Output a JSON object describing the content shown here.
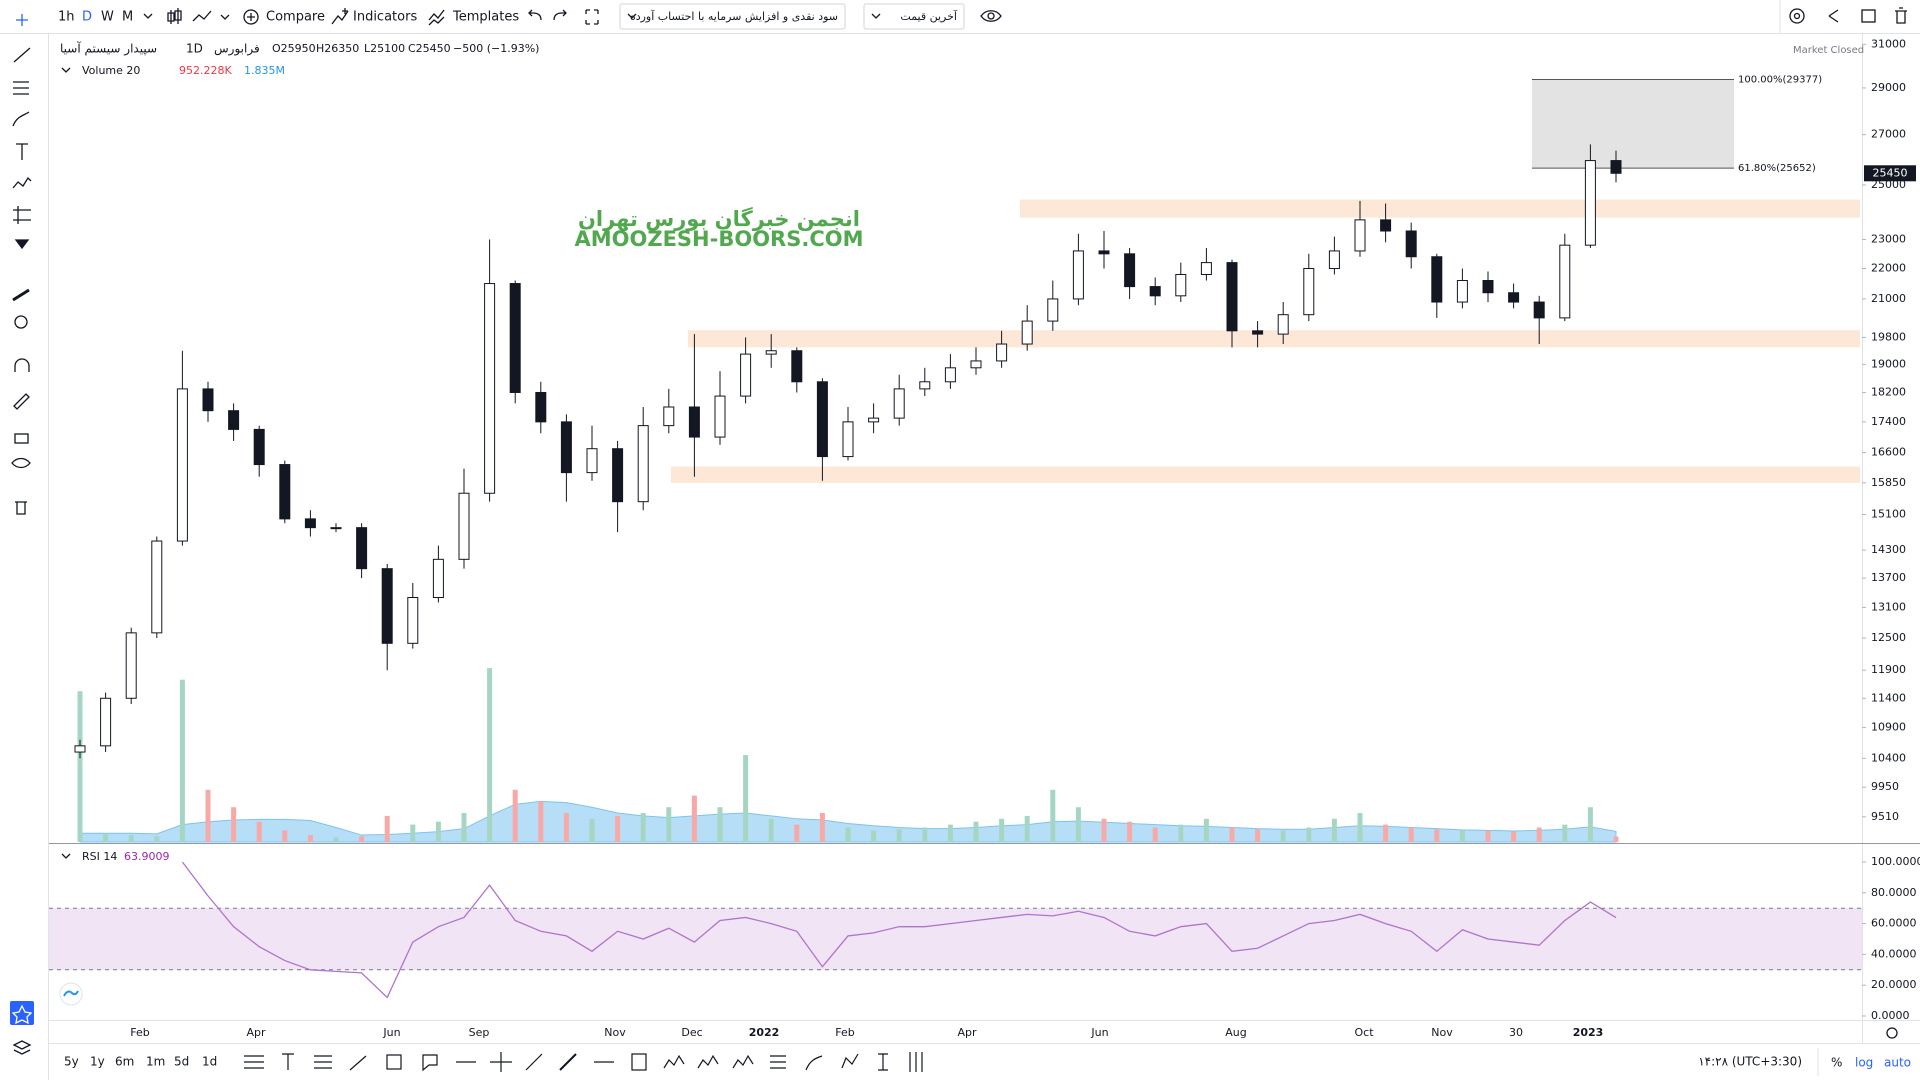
{
  "toolbar": {
    "intervals": [
      "1h",
      "D",
      "W",
      "M"
    ],
    "compare": "Compare",
    "indicators": "Indicators",
    "templates": "Templates",
    "dividend_mode": "سود نقدی و افزایش سرمایه با احتساب آورده",
    "price_type": "آخرین قیمت"
  },
  "legend": {
    "symbol": "سپیدار سیستم آسیا",
    "interval": "1D",
    "exchange": "فرابورس",
    "ohlc": [
      "O25950",
      "H26350",
      "L25100",
      "C25450",
      "−500 (−1.93%)"
    ],
    "status": "Market Closed"
  },
  "watermark": {
    "line1": "انجمن خبرگان بورس تهران",
    "line2": "AMOOZESH-BOORS.COM"
  },
  "bottom_bar": {
    "ranges": [
      "5y",
      "1y",
      "6m",
      "1m",
      "5d",
      "1d"
    ],
    "clock": "۱۴:۲۸ (UTC+3:30)",
    "percent": "%",
    "log": "log",
    "auto": "auto"
  },
  "chart_data": {
    "type": "candlestick",
    "log_scale": true,
    "color": "#131722",
    "open": [
      10500,
      10600,
      11400,
      12600,
      14500,
      18300,
      17700,
      17200,
      16300,
      15000,
      14800,
      14800,
      13900,
      12400,
      13300,
      14100,
      15600,
      21500,
      18200,
      17400,
      16100,
      16700,
      15400,
      17300,
      17800,
      17000,
      18100,
      19300,
      19400,
      18500,
      16500,
      17400,
      17500,
      18300,
      18500,
      18900,
      19100,
      19600,
      20300,
      21000,
      22600,
      22500,
      21400,
      21100,
      21800,
      22200,
      20000,
      19900,
      20500,
      22000,
      22600,
      23700,
      23300,
      22400,
      20900,
      21600,
      21200,
      20900,
      20400,
      22800,
      25950
    ],
    "high": [
      10700,
      11500,
      12700,
      14600,
      19400,
      18500,
      17900,
      17300,
      16400,
      15200,
      14900,
      14900,
      14000,
      13600,
      14400,
      16200,
      23000,
      21600,
      18500,
      17600,
      17300,
      16900,
      17800,
      18300,
      19900,
      18800,
      19800,
      19900,
      19500,
      18600,
      17800,
      17900,
      18700,
      18900,
      19300,
      19500,
      20000,
      20800,
      21600,
      23200,
      23300,
      22700,
      21700,
      22200,
      22700,
      22300,
      20300,
      20900,
      22500,
      23100,
      24400,
      24300,
      23600,
      22500,
      22000,
      21900,
      21500,
      21100,
      23200,
      26600,
      26350
    ],
    "low": [
      10400,
      10500,
      11300,
      12500,
      14400,
      17400,
      16900,
      16000,
      14900,
      14600,
      14700,
      13700,
      11900,
      12300,
      13200,
      13900,
      15400,
      17900,
      17100,
      15400,
      15900,
      14700,
      15200,
      17100,
      16000,
      16800,
      17900,
      18900,
      18200,
      15900,
      16400,
      17100,
      17300,
      18100,
      18300,
      18700,
      18900,
      19400,
      20000,
      20800,
      22000,
      21000,
      20800,
      20900,
      21600,
      19500,
      19500,
      19600,
      20300,
      21800,
      22400,
      22900,
      22000,
      20400,
      20700,
      20900,
      20700,
      19600,
      20300,
      22700,
      25100
    ],
    "close": [
      10600,
      11400,
      12600,
      14500,
      18300,
      17700,
      17200,
      16300,
      15000,
      14800,
      14800,
      13900,
      12400,
      13300,
      14100,
      15600,
      21500,
      18200,
      17400,
      16100,
      16700,
      15400,
      17300,
      17800,
      17000,
      18100,
      19300,
      19400,
      18500,
      16500,
      17400,
      17500,
      18300,
      18500,
      18900,
      19100,
      19600,
      20300,
      21000,
      22600,
      22500,
      21400,
      21100,
      21800,
      22200,
      20000,
      19900,
      20500,
      22000,
      22600,
      23700,
      23300,
      22400,
      20900,
      21600,
      21200,
      20900,
      20400,
      22800,
      25950,
      25450
    ],
    "ylim": [
      9150,
      31350
    ],
    "yticks": [
      31000,
      29000,
      27000,
      25000,
      23000,
      22000,
      21000,
      19800,
      19000,
      18200,
      17400,
      16600,
      15850,
      15100,
      14300,
      13700,
      13100,
      12500,
      11900,
      11400,
      10900,
      10400,
      9950,
      9510
    ],
    "xticks": [
      "Feb",
      "Apr",
      "Jun",
      "Sep",
      "Nov",
      "Dec",
      "2022",
      "Feb",
      "Apr",
      "Jun",
      "Aug",
      "Oct",
      "Nov",
      "30",
      "2023"
    ],
    "zones": [
      {
        "low": 23780,
        "high": 24450
      },
      {
        "low": 19500,
        "high": 20020
      },
      {
        "low": 15850,
        "high": 16250
      }
    ],
    "zone_color": "#fde8d7",
    "fibonacci": [
      {
        "value": 29377,
        "label": "100.00%(29377)"
      },
      {
        "value": 25652,
        "label": "61.80%(25652)"
      }
    ],
    "volume": {
      "name": "Volume 20",
      "values": [
        26000000,
        1500000,
        1200000,
        1000000,
        28000000,
        9000000,
        6000000,
        3500000,
        2000000,
        1200000,
        800000,
        1000000,
        4500000,
        3000000,
        3500000,
        5000000,
        30000000,
        9000000,
        7000000,
        5000000,
        4000000,
        4500000,
        5000000,
        6000000,
        8000000,
        6000000,
        15000000,
        4000000,
        3000000,
        5000000,
        2500000,
        2000000,
        2200000,
        2500000,
        3000000,
        3500000,
        4000000,
        4500000,
        9000000,
        6000000,
        4000000,
        3500000,
        2500000,
        3000000,
        4000000,
        2500000,
        2200000,
        2000000,
        2500000,
        4000000,
        5000000,
        3000000,
        2500000,
        2200000,
        2000000,
        2000000,
        1800000,
        2500000,
        3000000,
        6000000,
        952228
      ],
      "ma": [
        1500000,
        1500000,
        1500000,
        1400000,
        3000000,
        3500000,
        3800000,
        3900000,
        3900000,
        3700000,
        2500000,
        1200000,
        1300000,
        1500000,
        1800000,
        2300000,
        4500000,
        6500000,
        7000000,
        6800000,
        6000000,
        5000000,
        4500000,
        4200000,
        4500000,
        4800000,
        5000000,
        4500000,
        4000000,
        3800000,
        3200000,
        2800000,
        2500000,
        2300000,
        2300000,
        2500000,
        2800000,
        3000000,
        3500000,
        3600000,
        3400000,
        3200000,
        3000000,
        2800000,
        2700000,
        2500000,
        2300000,
        2200000,
        2200000,
        2500000,
        2800000,
        2700000,
        2500000,
        2300000,
        2100000,
        2000000,
        1900000,
        2000000,
        2200000,
        2600000,
        1835000
      ],
      "last_value_label": "952.228K",
      "ma_last_label": "1.835M",
      "up_color": "#a5d6c4",
      "down_color": "#f7a9a8",
      "ma_color": "#7cc3f0"
    },
    "rsi": {
      "name": "RSI 14",
      "color": "#b073cf",
      "band_color": "#f0e4f5",
      "values": [
        null,
        null,
        null,
        null,
        100,
        78,
        58,
        45,
        36,
        30,
        29,
        28,
        12,
        48,
        58,
        64,
        85,
        62,
        55,
        52,
        42,
        55,
        50,
        57,
        48,
        62,
        64,
        60,
        55,
        32,
        52,
        54,
        58,
        58,
        60,
        62,
        64,
        66,
        65,
        68,
        64,
        55,
        52,
        58,
        60,
        42,
        44,
        52,
        60,
        62,
        66,
        60,
        55,
        42,
        56,
        50,
        48,
        46,
        62,
        74,
        63.9009
      ],
      "ylim": [
        0,
        100
      ],
      "bands": [
        30,
        70
      ],
      "yticks": [
        {
          "value": 100,
          "label": "100.0000"
        },
        {
          "value": 80,
          "label": "80.0000"
        },
        {
          "value": 60,
          "label": "60.0000"
        },
        {
          "value": 40,
          "label": "40.0000"
        },
        {
          "value": 20,
          "label": "20.0000"
        },
        {
          "value": 0,
          "label": "0.0000"
        }
      ]
    }
  }
}
